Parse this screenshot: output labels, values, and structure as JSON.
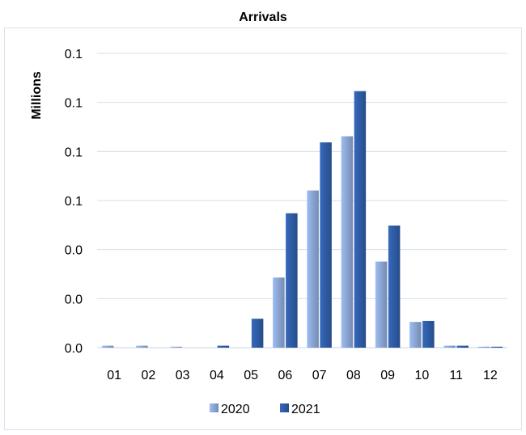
{
  "chart_data": {
    "type": "bar",
    "title": "Arrivals",
    "xlabel": "",
    "ylabel": "Millions",
    "categories": [
      "01",
      "02",
      "03",
      "04",
      "05",
      "06",
      "07",
      "08",
      "09",
      "10",
      "11",
      "12"
    ],
    "series": [
      {
        "name": "2020",
        "color": "#8da9d8",
        "values": [
          0.0008,
          0.0008,
          0.0004,
          0.0,
          0.0,
          0.0286,
          0.0641,
          0.0862,
          0.0351,
          0.0105,
          0.0008,
          0.0004
        ]
      },
      {
        "name": "2021",
        "color": "#2f5ea8",
        "values": [
          0.0,
          0.0,
          0.0,
          0.0008,
          0.0118,
          0.0548,
          0.0837,
          0.1046,
          0.0498,
          0.0109,
          0.0008,
          0.0004
        ]
      }
    ],
    "y_tick_labels": [
      "0.0",
      "0.0",
      "0.0",
      "0.1",
      "0.1",
      "0.1",
      "0.1"
    ],
    "ylim": [
      0,
      0.12
    ],
    "ytick_step": 0.02,
    "grid": true,
    "legend_position": "bottom"
  }
}
